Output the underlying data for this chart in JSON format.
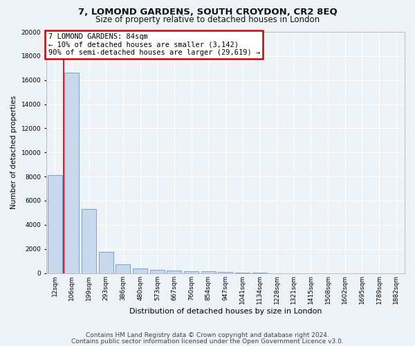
{
  "title1": "7, LOMOND GARDENS, SOUTH CROYDON, CR2 8EQ",
  "title2": "Size of property relative to detached houses in London",
  "xlabel": "Distribution of detached houses by size in London",
  "ylabel": "Number of detached properties",
  "categories": [
    "12sqm",
    "106sqm",
    "199sqm",
    "293sqm",
    "386sqm",
    "480sqm",
    "573sqm",
    "667sqm",
    "760sqm",
    "854sqm",
    "947sqm",
    "1041sqm",
    "1134sqm",
    "1228sqm",
    "1321sqm",
    "1415sqm",
    "1508sqm",
    "1602sqm",
    "1695sqm",
    "1789sqm",
    "1882sqm"
  ],
  "bar_values": [
    8100,
    16600,
    5300,
    1750,
    700,
    370,
    280,
    200,
    170,
    130,
    80,
    50,
    30,
    0,
    0,
    0,
    0,
    0,
    0,
    0,
    0
  ],
  "bar_color": "#c8d8ec",
  "bar_edge_color": "#6699cc",
  "annotation_box_text": "7 LOMOND GARDENS: 84sqm\n← 10% of detached houses are smaller (3,142)\n90% of semi-detached houses are larger (29,619) →",
  "annotation_box_color": "#ffffff",
  "annotation_box_edge_color": "#cc0000",
  "vline_x": 0.5,
  "ylim": [
    0,
    20000
  ],
  "yticks": [
    0,
    2000,
    4000,
    6000,
    8000,
    10000,
    12000,
    14000,
    16000,
    18000,
    20000
  ],
  "footer1": "Contains HM Land Registry data © Crown copyright and database right 2024.",
  "footer2": "Contains public sector information licensed under the Open Government Licence v3.0.",
  "bg_color": "#edf2f7",
  "plot_bg_color": "#edf2f7",
  "grid_color": "#ffffff",
  "title1_fontsize": 9.5,
  "title2_fontsize": 8.5,
  "xlabel_fontsize": 8,
  "ylabel_fontsize": 7.5,
  "tick_fontsize": 6.5,
  "footer_fontsize": 6.5,
  "ann_fontsize": 7.5
}
